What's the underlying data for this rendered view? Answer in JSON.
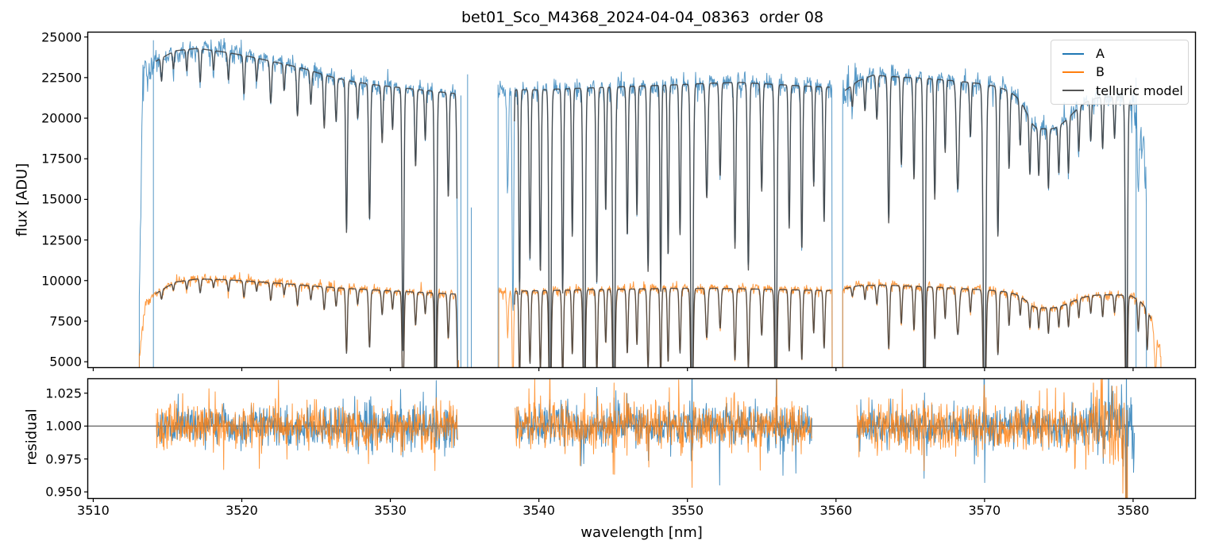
{
  "legend": {
    "position": "upper right",
    "entries": [
      {
        "label": "A",
        "color": "#1f77b4"
      },
      {
        "label": "B",
        "color": "#ff7f0e"
      },
      {
        "label": "telluric model",
        "color": "#555555"
      }
    ]
  },
  "chart_data": {
    "type": "line",
    "title": "bet01_Sco_M4368_2024-04-04_08363  order 08",
    "xlabel": "wavelength [nm]",
    "xlim": [
      3509.63,
      3584.2
    ],
    "xticks": [
      3510,
      3520,
      3530,
      3540,
      3550,
      3560,
      3570,
      3580
    ],
    "panels": [
      {
        "name": "flux",
        "ylabel": "flux [ADU]",
        "ylim": [
          4640,
          25300
        ],
        "yticks": [
          5000,
          7500,
          10000,
          12500,
          15000,
          17500,
          20000,
          22500,
          25000
        ]
      },
      {
        "name": "residual",
        "ylabel": "residual",
        "ylim": [
          0.945,
          1.036
        ],
        "yticks": [
          0.95,
          0.975,
          1.0,
          1.025
        ],
        "hline": 1.0,
        "hline_color": "#4d4d4d"
      }
    ],
    "series": [
      {
        "name": "A",
        "color": "#1f77b4",
        "alpha": 0.75,
        "segments": [
          [
            3513.1,
            3534.55
          ],
          [
            3537.25,
            3559.75
          ],
          [
            3560.45,
            3580.9
          ]
        ],
        "continuum": [
          [
            3513.1,
            9000
          ],
          [
            3513.35,
            22500
          ],
          [
            3514.2,
            23500
          ],
          [
            3515.5,
            24150
          ],
          [
            3517.0,
            24300
          ],
          [
            3519.0,
            24050
          ],
          [
            3520.5,
            23800
          ],
          [
            3522.0,
            23500
          ],
          [
            3524.0,
            23100
          ],
          [
            3526.0,
            22550
          ],
          [
            3527.5,
            22250
          ],
          [
            3529.0,
            22050
          ],
          [
            3531.0,
            21850
          ],
          [
            3533.0,
            21650
          ],
          [
            3534.55,
            21500
          ],
          [
            3537.25,
            21750
          ],
          [
            3540.0,
            21750
          ],
          [
            3543.0,
            21850
          ],
          [
            3546.0,
            21950
          ],
          [
            3549.0,
            22050
          ],
          [
            3551.5,
            22150
          ],
          [
            3553.5,
            22200
          ],
          [
            3555.5,
            22100
          ],
          [
            3557.5,
            22000
          ],
          [
            3559.75,
            21900
          ],
          [
            3560.45,
            21600
          ],
          [
            3561.5,
            22300
          ],
          [
            3562.5,
            22650
          ],
          [
            3564.0,
            22550
          ],
          [
            3566.0,
            22450
          ],
          [
            3568.0,
            22300
          ],
          [
            3570.0,
            22100
          ],
          [
            3572.0,
            21800
          ],
          [
            3574.0,
            21550
          ],
          [
            3576.0,
            21400
          ],
          [
            3578.0,
            21350
          ],
          [
            3579.6,
            21300
          ],
          [
            3580.2,
            20200
          ],
          [
            3580.9,
            17200
          ]
        ]
      },
      {
        "name": "B",
        "color": "#ff7f0e",
        "alpha": 0.8,
        "segments": [
          [
            3513.1,
            3534.6
          ],
          [
            3537.3,
            3559.75
          ],
          [
            3560.45,
            3581.9
          ]
        ],
        "continuum": [
          [
            3513.1,
            5200
          ],
          [
            3513.45,
            8300
          ],
          [
            3514.2,
            9200
          ],
          [
            3515.5,
            9900
          ],
          [
            3517.0,
            10100
          ],
          [
            3519.0,
            10050
          ],
          [
            3521.0,
            9930
          ],
          [
            3523.0,
            9800
          ],
          [
            3525.0,
            9650
          ],
          [
            3527.0,
            9520
          ],
          [
            3529.0,
            9420
          ],
          [
            3531.0,
            9320
          ],
          [
            3533.0,
            9230
          ],
          [
            3534.6,
            9160
          ],
          [
            3537.3,
            9330
          ],
          [
            3540.0,
            9380
          ],
          [
            3543.0,
            9430
          ],
          [
            3546.0,
            9470
          ],
          [
            3549.0,
            9520
          ],
          [
            3552.0,
            9520
          ],
          [
            3555.0,
            9470
          ],
          [
            3557.5,
            9420
          ],
          [
            3559.75,
            9380
          ],
          [
            3560.45,
            9480
          ],
          [
            3561.5,
            9680
          ],
          [
            3563.0,
            9720
          ],
          [
            3565.0,
            9660
          ],
          [
            3567.0,
            9580
          ],
          [
            3569.0,
            9480
          ],
          [
            3571.0,
            9380
          ],
          [
            3573.0,
            9300
          ],
          [
            3575.0,
            9230
          ],
          [
            3577.0,
            9170
          ],
          [
            3579.0,
            9120
          ],
          [
            3579.9,
            9050
          ],
          [
            3580.5,
            8700
          ],
          [
            3581.0,
            8150
          ],
          [
            3581.45,
            7000
          ],
          [
            3581.9,
            5200
          ]
        ]
      },
      {
        "name": "telluric model",
        "color": "#3c3c3c",
        "alpha": 0.85,
        "segments_on_A": [
          [
            3514.2,
            3534.5
          ],
          [
            3538.35,
            3559.6
          ],
          [
            3560.6,
            3579.9
          ]
        ],
        "segments_on_B": [
          [
            3514.2,
            3534.55
          ],
          [
            3538.35,
            3559.65
          ],
          [
            3560.6,
            3581.2
          ]
        ]
      }
    ],
    "telluric_lines": [
      [
        3514.6,
        0.06,
        0.05
      ],
      [
        3515.4,
        0.045,
        0.05
      ],
      [
        3516.3,
        0.055,
        0.05
      ],
      [
        3517.2,
        0.085,
        0.055
      ],
      [
        3518.1,
        0.05,
        0.05
      ],
      [
        3519.1,
        0.07,
        0.055
      ],
      [
        3520.15,
        0.1,
        0.055
      ],
      [
        3521.0,
        0.06,
        0.05
      ],
      [
        3521.95,
        0.11,
        0.06
      ],
      [
        3522.85,
        0.07,
        0.05
      ],
      [
        3523.75,
        0.13,
        0.06
      ],
      [
        3524.65,
        0.09,
        0.055
      ],
      [
        3525.55,
        0.145,
        0.06
      ],
      [
        3526.35,
        0.12,
        0.055
      ],
      [
        3527.05,
        0.42,
        0.055
      ],
      [
        3527.8,
        0.1,
        0.05
      ],
      [
        3528.6,
        0.38,
        0.06
      ],
      [
        3529.45,
        0.16,
        0.055
      ],
      [
        3530.15,
        0.12,
        0.05
      ],
      [
        3530.85,
        0.74,
        0.06
      ],
      [
        3531.7,
        0.22,
        0.055
      ],
      [
        3532.35,
        0.14,
        0.05
      ],
      [
        3533.05,
        0.985,
        0.065
      ],
      [
        3533.9,
        0.3,
        0.055
      ],
      [
        3534.55,
        0.55,
        0.06
      ],
      [
        3535.6,
        0.5,
        0.06
      ],
      [
        3536.6,
        0.55,
        0.06
      ],
      [
        3537.9,
        0.3,
        0.05
      ],
      [
        3538.25,
        0.66,
        0.05
      ],
      [
        3538.7,
        0.58,
        0.05
      ],
      [
        3539.4,
        0.48,
        0.055
      ],
      [
        3540.1,
        0.52,
        0.055
      ],
      [
        3540.75,
        0.985,
        0.07
      ],
      [
        3541.6,
        0.58,
        0.055
      ],
      [
        3542.25,
        0.42,
        0.05
      ],
      [
        3543.05,
        0.985,
        0.07
      ],
      [
        3543.9,
        0.55,
        0.055
      ],
      [
        3544.5,
        0.35,
        0.05
      ],
      [
        3545.05,
        0.985,
        0.075
      ],
      [
        3545.95,
        0.42,
        0.055
      ],
      [
        3546.6,
        0.36,
        0.05
      ],
      [
        3547.35,
        0.52,
        0.06
      ],
      [
        3548.2,
        0.58,
        0.05
      ],
      [
        3548.7,
        0.48,
        0.05
      ],
      [
        3549.5,
        0.42,
        0.055
      ],
      [
        3550.3,
        0.985,
        0.075
      ],
      [
        3551.3,
        0.32,
        0.07
      ],
      [
        3552.2,
        0.26,
        0.06
      ],
      [
        3553.2,
        0.46,
        0.06
      ],
      [
        3554.1,
        0.52,
        0.06
      ],
      [
        3555.0,
        0.3,
        0.06
      ],
      [
        3555.95,
        0.96,
        0.07
      ],
      [
        3556.85,
        0.4,
        0.055
      ],
      [
        3557.7,
        0.46,
        0.055
      ],
      [
        3558.5,
        0.28,
        0.05
      ],
      [
        3559.2,
        0.38,
        0.055
      ],
      [
        3560.0,
        0.3,
        0.05
      ],
      [
        3561.1,
        0.06,
        0.05
      ],
      [
        3561.95,
        0.09,
        0.05
      ],
      [
        3562.75,
        0.12,
        0.055
      ],
      [
        3563.55,
        0.4,
        0.06
      ],
      [
        3564.4,
        0.24,
        0.055
      ],
      [
        3565.25,
        0.28,
        0.055
      ],
      [
        3565.95,
        0.97,
        0.065
      ],
      [
        3566.65,
        0.33,
        0.055
      ],
      [
        3567.35,
        0.2,
        0.05
      ],
      [
        3568.2,
        0.3,
        0.09
      ],
      [
        3569.05,
        0.15,
        0.055
      ],
      [
        3570.0,
        0.98,
        0.085
      ],
      [
        3570.9,
        0.42,
        0.06
      ],
      [
        3571.65,
        0.22,
        0.055
      ],
      [
        3572.4,
        0.13,
        0.05
      ],
      [
        3573.05,
        0.17,
        0.05
      ],
      [
        3573.65,
        0.15,
        0.05
      ],
      [
        3574.3,
        0.19,
        0.05
      ],
      [
        3575.0,
        0.15,
        0.05
      ],
      [
        3575.65,
        0.17,
        0.05
      ],
      [
        3576.35,
        0.13,
        0.05
      ],
      [
        3577.15,
        0.12,
        0.05
      ],
      [
        3577.95,
        0.15,
        0.05
      ],
      [
        3578.75,
        0.12,
        0.05
      ],
      [
        3579.55,
        0.975,
        0.065
      ],
      [
        3580.35,
        0.22,
        0.05
      ],
      [
        3580.95,
        0.3,
        0.05
      ],
      [
        3581.5,
        0.35,
        0.06
      ],
      [
        3574.45,
        0.1,
        1.3
      ],
      [
        3573.3,
        0.03,
        0.45
      ]
    ],
    "noise": {
      "flux_sigma_A": 0.014,
      "flux_sigma_B": 0.016,
      "resid_sigma_A": 0.0075,
      "resid_sigma_B": 0.0085,
      "boost_regions_A": [
        [
          3513.1,
          3514.3,
          2.2
        ],
        [
          3560.45,
          3561.4,
          2.0
        ],
        [
          3579.9,
          3580.9,
          3.0
        ]
      ],
      "boost_regions_B": [
        [
          3513.1,
          3514.0,
          1.8
        ],
        [
          3581.0,
          3581.9,
          2.5
        ]
      ]
    },
    "extra_spikes_A": [
      [
        3514.05,
        24800
      ],
      [
        3534.75,
        21400
      ],
      [
        3535.2,
        22700
      ],
      [
        3535.45,
        14500
      ],
      [
        3580.2,
        22500
      ]
    ],
    "residual": {
      "segments": [
        [
          3514.25,
          3534.55
        ],
        [
          3538.4,
          3558.4
        ],
        [
          3561.4,
          3580.1
        ]
      ],
      "colors": {
        "A": "#1f77b4",
        "B": "#ff7f0e"
      },
      "tail_drop_B_start": 3579.4,
      "end_amp_ramp_start": 3576.5
    }
  }
}
